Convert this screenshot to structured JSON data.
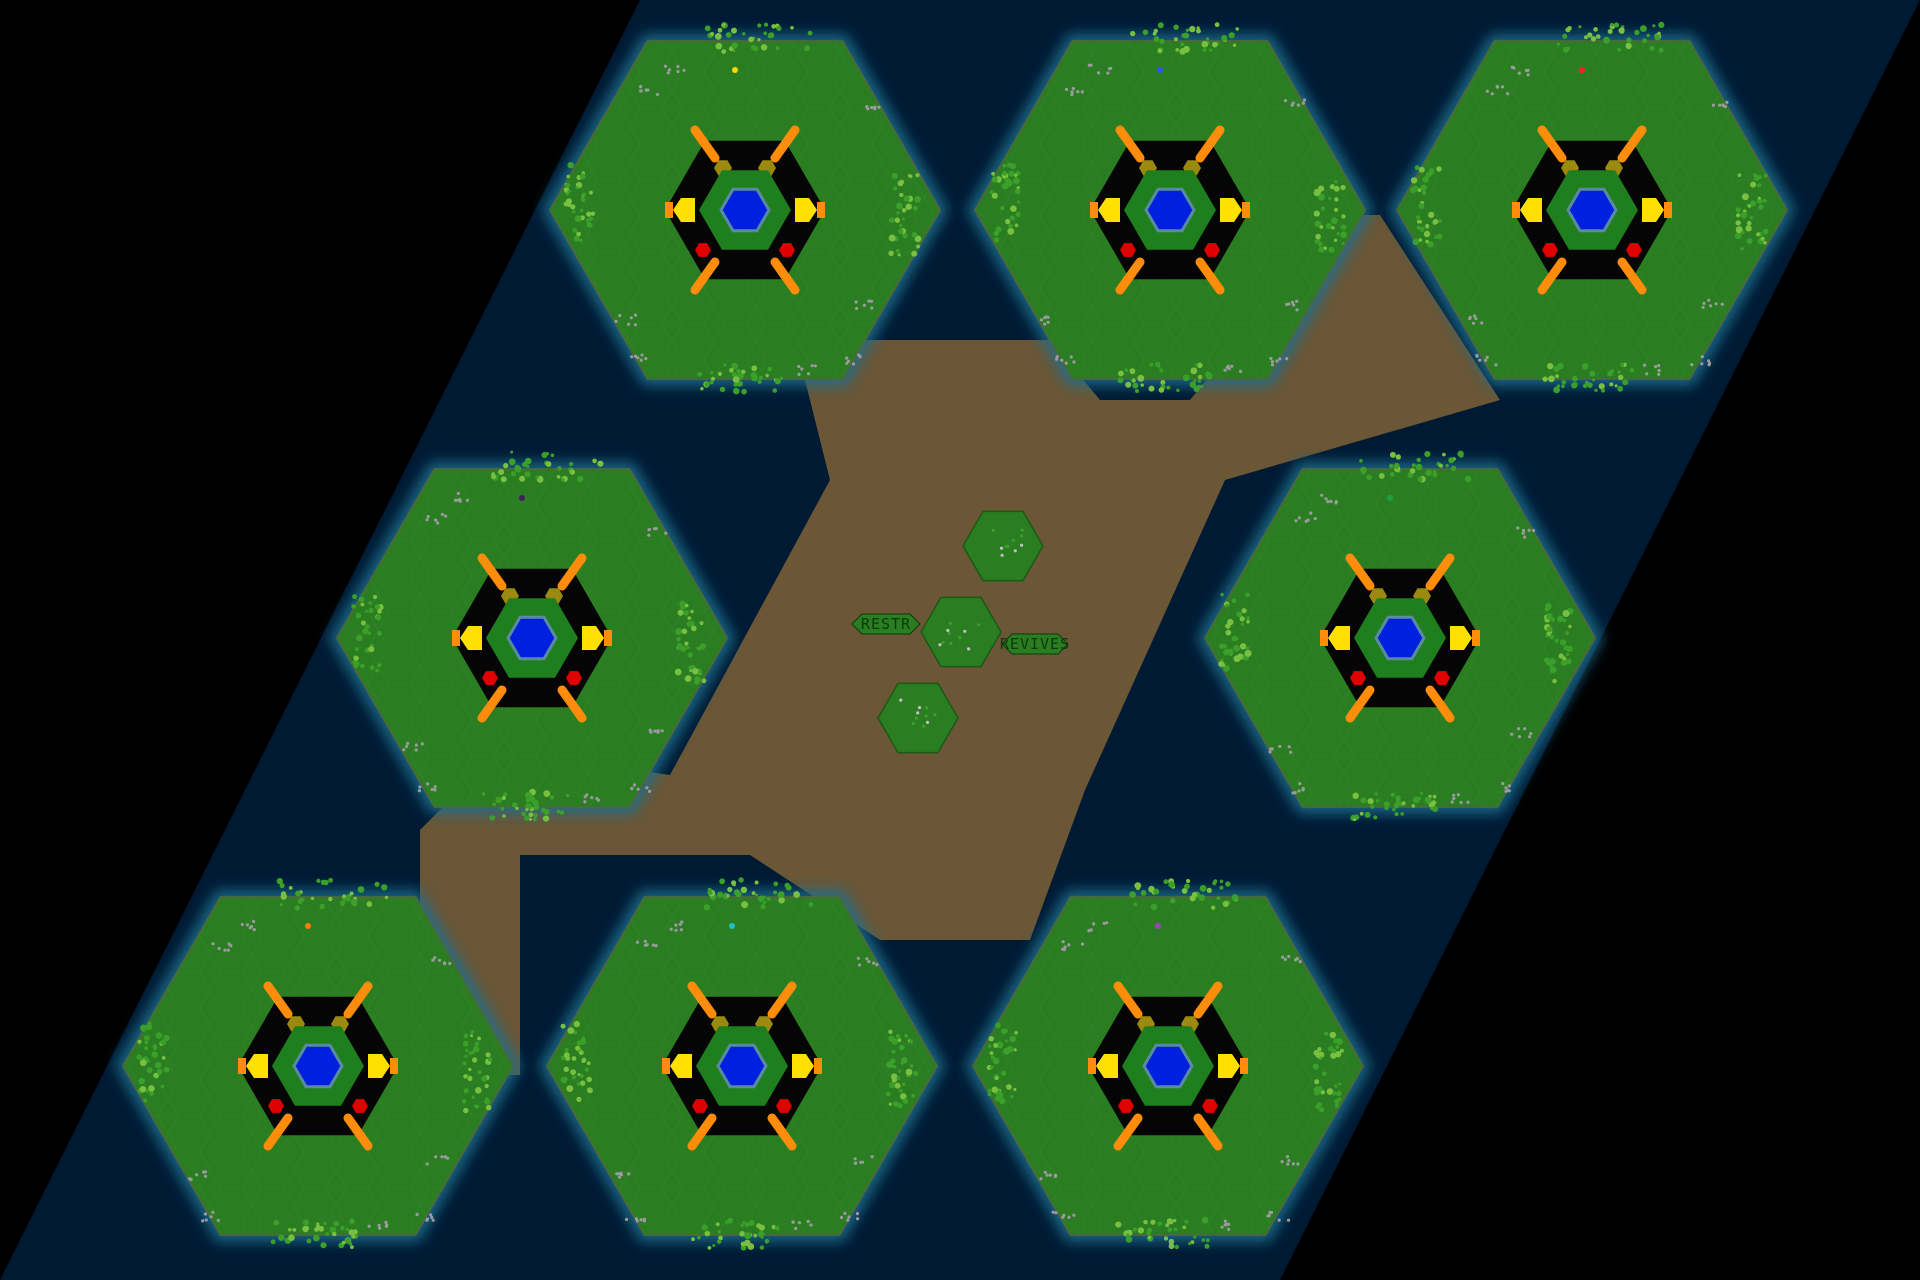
{
  "minimap": {
    "colors": {
      "background": "#000000",
      "ocean": "#001a33",
      "ocean_glow": "#1e6f8f",
      "dirt": "#6b5636",
      "grass": "#2b7d22",
      "grass_dark": "#1f6a18",
      "base_black": "#050505",
      "base_ring": "#1f7f1f",
      "pool": "#0020e0",
      "pool_rim": "#5a8aa0",
      "orange": "#ff8c0a",
      "yellow": "#ffe000",
      "olive": "#9a8a10",
      "red": "#e00000",
      "tree": "#3aa02a",
      "rock": "#9a9aa0"
    },
    "islands": [
      {
        "name": "island-top-left",
        "player_color": "#ffd700"
      },
      {
        "name": "island-top-middle",
        "player_color": "#3050ff"
      },
      {
        "name": "island-top-right",
        "player_color": "#ff2020"
      },
      {
        "name": "island-middle-left",
        "player_color": "#402060"
      },
      {
        "name": "island-middle-right",
        "player_color": "#20a040"
      },
      {
        "name": "island-bottom-left",
        "player_color": "#ff8000"
      },
      {
        "name": "island-bottom-middle",
        "player_color": "#20c0c0"
      },
      {
        "name": "island-bottom-right",
        "player_color": "#a040c0"
      }
    ],
    "center": {
      "sign_left": "RESTR",
      "sign_right": "REVIVES"
    }
  }
}
